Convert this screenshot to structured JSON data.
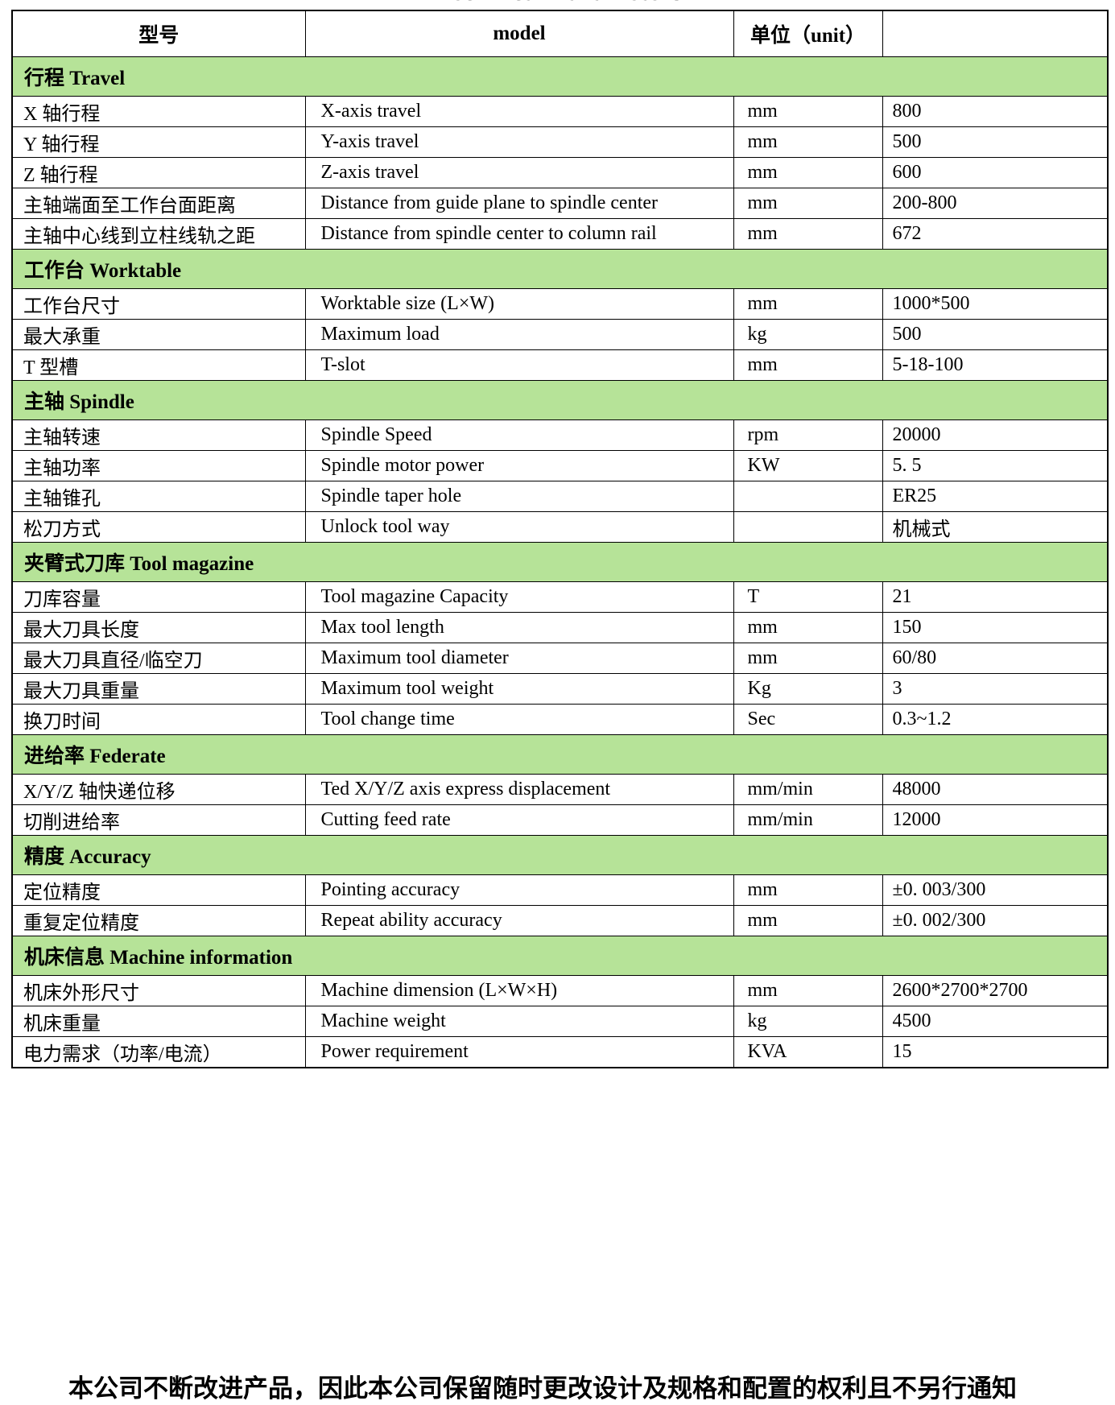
{
  "title": "Technical Parameters",
  "colors": {
    "section_bg": "#b6e398"
  },
  "table": {
    "header": {
      "model_cn": "型号",
      "model_en": "model",
      "unit": "单位（unit）",
      "value": ""
    },
    "sections": [
      {
        "label": "行程 Travel",
        "rows": [
          {
            "cn": "X 轴行程",
            "en": "X-axis travel",
            "unit": "mm",
            "value": "800"
          },
          {
            "cn": "Y 轴行程",
            "en": "Y-axis travel",
            "unit": "mm",
            "value": "500"
          },
          {
            "cn": "Z 轴行程",
            "en": "Z-axis travel",
            "unit": "mm",
            "value": "600"
          },
          {
            "cn": "主轴端面至工作台面距离",
            "en": "Distance from guide plane to spindle center",
            "unit": "mm",
            "value": "200-800"
          },
          {
            "cn": "主轴中心线到立柱线轨之距",
            "en": "Distance from spindle center to column rail",
            "unit": "mm",
            "value": "672"
          }
        ]
      },
      {
        "label": "工作台 Worktable",
        "rows": [
          {
            "cn": "工作台尺寸",
            "en": "Worktable size (L×W)",
            "unit": "mm",
            "value": "1000*500"
          },
          {
            "cn": "最大承重",
            "en": "Maximum load",
            "unit": "kg",
            "value": "500"
          },
          {
            "cn": "T 型槽",
            "en": "T-slot",
            "unit": "mm",
            "value": "5-18-100"
          }
        ]
      },
      {
        "label": "主轴 Spindle",
        "rows": [
          {
            "cn": "主轴转速",
            "en": "Spindle Speed",
            "unit": "rpm",
            "value": "20000"
          },
          {
            "cn": "主轴功率",
            "en": "Spindle motor power",
            "unit": "KW",
            "value": "5. 5"
          },
          {
            "cn": "主轴锥孔",
            "en": "Spindle taper hole",
            "unit": "",
            "value": "ER25"
          },
          {
            "cn": "松刀方式",
            "en": "Unlock tool way",
            "unit": "",
            "value": "机械式"
          }
        ]
      },
      {
        "label": "夹臂式刀库 Tool magazine",
        "rows": [
          {
            "cn": "刀库容量",
            "en": "Tool magazine Capacity",
            "unit": "T",
            "value": "21"
          },
          {
            "cn": "最大刀具长度",
            "en": "Max tool length",
            "unit": "mm",
            "value": "150"
          },
          {
            "cn": "最大刀具直径/临空刀",
            "en": "Maximum tool diameter",
            "unit": "mm",
            "value": "60/80"
          },
          {
            "cn": "最大刀具重量",
            "en": "Maximum tool weight",
            "unit": "Kg",
            "value": "3"
          },
          {
            "cn": "换刀时间",
            "en": "Tool change time",
            "unit": "Sec",
            "value": "0.3~1.2"
          }
        ]
      },
      {
        "label": "进给率 Federate",
        "rows": [
          {
            "cn": "X/Y/Z 轴快递位移",
            "en": "Ted X/Y/Z axis express displacement",
            "unit": "mm/min",
            "value": "48000"
          },
          {
            "cn": "切削进给率",
            "en": "Cutting feed rate",
            "unit": "mm/min",
            "value": "12000"
          }
        ]
      },
      {
        "label": "精度 Accuracy",
        "rows": [
          {
            "cn": "定位精度",
            "en": "Pointing accuracy",
            "unit": "mm",
            "value": "±0. 003/300"
          },
          {
            "cn": "重复定位精度",
            "en": "Repeat ability accuracy",
            "unit": "mm",
            "value": "±0. 002/300"
          }
        ]
      },
      {
        "label": "机床信息 Machine information",
        "rows": [
          {
            "cn": "机床外形尺寸",
            "en": "Machine dimension (L×W×H)",
            "unit": "mm",
            "value": "2600*2700*2700"
          },
          {
            "cn": "机床重量",
            "en": "Machine weight",
            "unit": "kg",
            "value": "4500"
          },
          {
            "cn": "电力需求（功率/电流）",
            "en": "Power requirement",
            "unit": "KVA",
            "value": "15"
          }
        ]
      }
    ]
  },
  "footer_note": "本公司不断改进产品，因此本公司保留随时更改设计及规格和配置的权利且不另行通知"
}
